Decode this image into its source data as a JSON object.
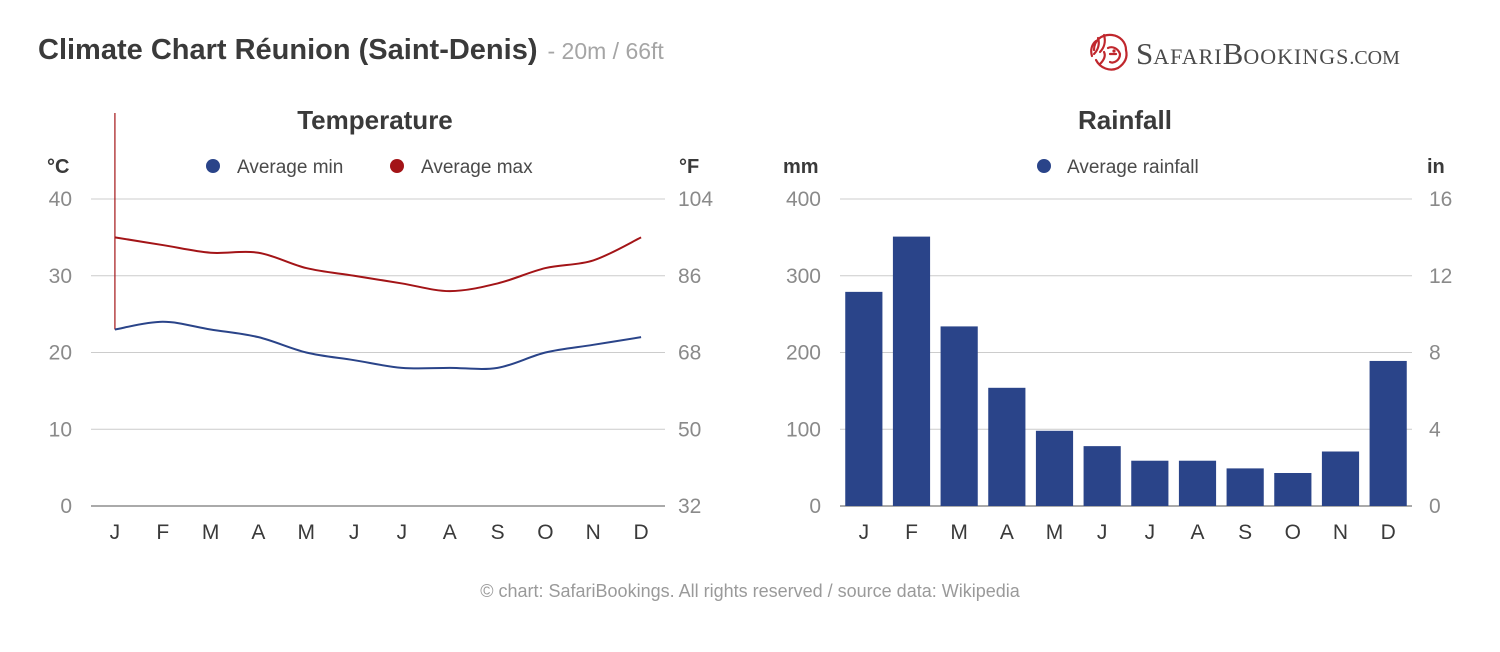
{
  "header": {
    "title": "Climate Chart Réunion (Saint-Denis)",
    "subtitle": "- 20m / 66ft"
  },
  "logo": {
    "text_S": "S",
    "text_afari": "AFARI",
    "text_B": "B",
    "text_ookings": "OOKINGS",
    "text_com": ".COM",
    "icon": "lion-head-icon",
    "color": "#c0272d"
  },
  "footer": "© chart: SafariBookings. All rights reserved / source data: Wikipedia",
  "colors": {
    "min": "#2a4489",
    "max": "#a31417",
    "bar": "#2a4489",
    "grid": "#cccccc"
  },
  "chart_data": [
    {
      "type": "line",
      "title": "Temperature",
      "left_unit": "°C",
      "right_unit": "°F",
      "categories": [
        "J",
        "F",
        "M",
        "A",
        "M",
        "J",
        "J",
        "A",
        "S",
        "O",
        "N",
        "D"
      ],
      "ylim": [
        0,
        40
      ],
      "yticks": [
        "0",
        "10",
        "20",
        "30",
        "40"
      ],
      "yticks_right": [
        "32",
        "50",
        "68",
        "86",
        "104"
      ],
      "legend_position": "top-center",
      "grid": true,
      "series": [
        {
          "name": "Average min",
          "values": [
            23,
            24,
            23,
            22,
            20,
            19,
            18,
            18,
            18,
            20,
            21,
            22
          ]
        },
        {
          "name": "Average max",
          "values": [
            35,
            34,
            33,
            33,
            31,
            30,
            29,
            28,
            29,
            31,
            32,
            35
          ]
        }
      ]
    },
    {
      "type": "bar",
      "title": "Rainfall",
      "left_unit": "mm",
      "right_unit": "in",
      "categories": [
        "J",
        "F",
        "M",
        "A",
        "M",
        "J",
        "J",
        "A",
        "S",
        "O",
        "N",
        "D"
      ],
      "ylim": [
        0,
        400
      ],
      "yticks": [
        "0",
        "100",
        "200",
        "300",
        "400"
      ],
      "yticks_right": [
        "0",
        "4",
        "8",
        "12",
        "16"
      ],
      "legend_position": "top-center",
      "grid": true,
      "series": [
        {
          "name": "Average rainfall",
          "values": [
            279,
            351,
            234,
            154,
            98,
            78,
            59,
            59,
            49,
            43,
            71,
            189
          ]
        }
      ]
    }
  ]
}
